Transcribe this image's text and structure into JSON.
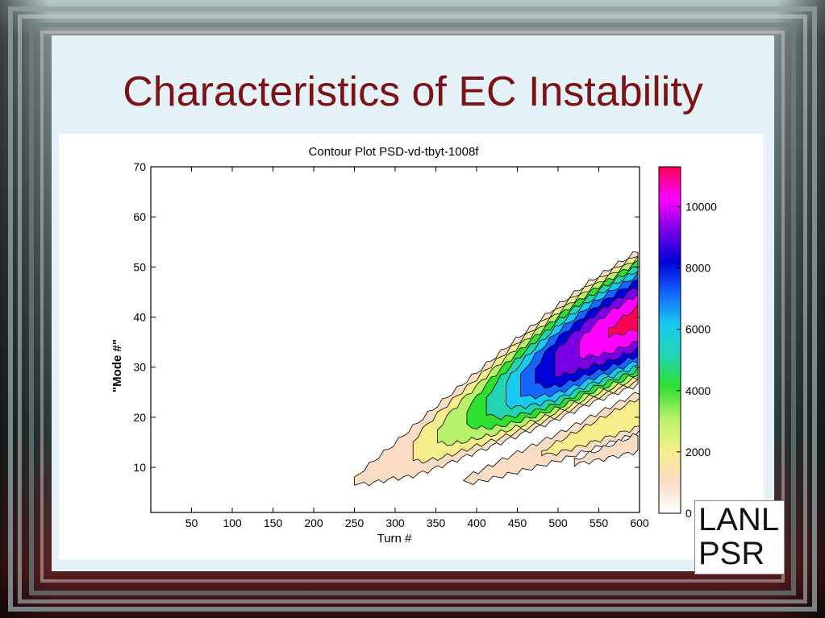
{
  "slide": {
    "title": "Characteristics of EC Instability",
    "logo_lines": [
      "LANL",
      "PSR"
    ]
  },
  "chart_data": {
    "type": "contour",
    "title": "Contour Plot PSD-vd-tbyt-1008f",
    "xlabel": "Turn #",
    "ylabel": "\"Mode #\"",
    "xlim": [
      0,
      600
    ],
    "ylim": [
      1,
      70
    ],
    "xticks": [
      50,
      100,
      150,
      200,
      250,
      300,
      350,
      400,
      450,
      500,
      550,
      600
    ],
    "yticks": [
      10,
      20,
      30,
      40,
      50,
      60,
      70
    ],
    "colorbar": {
      "range": [
        0,
        11300
      ],
      "ticks": [
        0,
        2000,
        4000,
        6000,
        8000,
        10000
      ],
      "colormap": [
        "#ffffff",
        "#f9dcc4",
        "#f5ee8c",
        "#b8f26a",
        "#2fe02f",
        "#22d4b0",
        "#19c9f0",
        "#1565ff",
        "#0000d8",
        "#7a00e6",
        "#ff00ff",
        "#ff0055"
      ]
    },
    "bands": [
      {
        "name": "main",
        "centerline": [
          [
            178,
            2
          ],
          [
            260,
            8
          ],
          [
            320,
            13
          ],
          [
            380,
            19
          ],
          [
            430,
            24
          ],
          [
            480,
            29
          ],
          [
            540,
            35
          ],
          [
            600,
            40
          ]
        ],
        "halfwidth": [
          [
            178,
            1
          ],
          [
            300,
            6
          ],
          [
            400,
            9
          ],
          [
            500,
            12
          ],
          [
            600,
            14
          ]
        ],
        "peak": [
          [
            178,
            300
          ],
          [
            300,
            1500
          ],
          [
            400,
            4500
          ],
          [
            450,
            7000
          ],
          [
            500,
            9500
          ],
          [
            560,
            11000
          ],
          [
            600,
            11300
          ]
        ]
      },
      {
        "name": "lower-1",
        "centerline": [
          [
            300,
            4
          ],
          [
            400,
            8
          ],
          [
            500,
            14
          ],
          [
            600,
            21
          ]
        ],
        "halfwidth": [
          [
            300,
            1
          ],
          [
            450,
            3
          ],
          [
            600,
            5
          ]
        ],
        "peak": [
          [
            300,
            200
          ],
          [
            400,
            1200
          ],
          [
            500,
            2200
          ],
          [
            600,
            3000
          ]
        ]
      },
      {
        "name": "lower-2",
        "centerline": [
          [
            430,
            7
          ],
          [
            500,
            10
          ],
          [
            600,
            15
          ]
        ],
        "halfwidth": [
          [
            430,
            1
          ],
          [
            500,
            2
          ],
          [
            600,
            3
          ]
        ],
        "peak": [
          [
            430,
            200
          ],
          [
            500,
            900
          ],
          [
            600,
            1500
          ]
        ]
      }
    ]
  }
}
